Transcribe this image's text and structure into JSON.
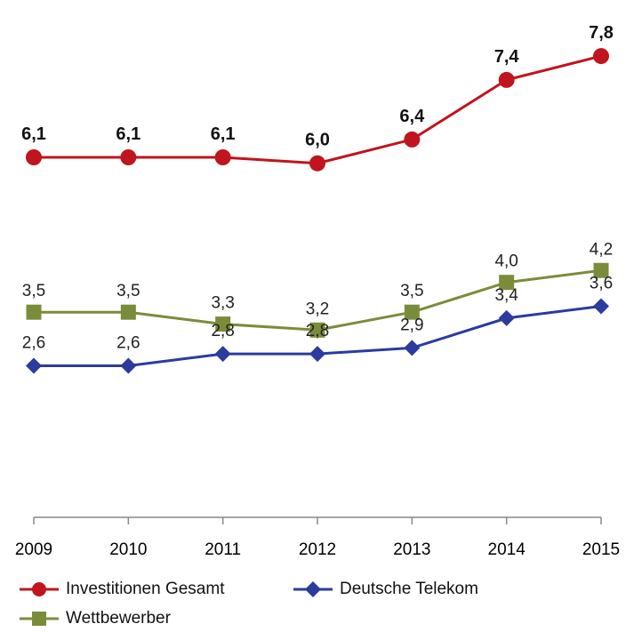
{
  "chart_data": {
    "type": "line",
    "x": [
      "2009",
      "2010",
      "2011",
      "2012",
      "2013",
      "2014",
      "2015"
    ],
    "ylim": [
      0,
      8.5
    ],
    "grid": false,
    "legend_position": "bottom",
    "series": [
      {
        "name": "Investitionen Gesamt",
        "color": "#C0141E",
        "marker": "circle",
        "values": [
          6.1,
          6.1,
          6.1,
          6.0,
          6.4,
          7.4,
          7.8
        ],
        "labels": [
          "6,1",
          "6,1",
          "6,1",
          "6,0",
          "6,4",
          "7,4",
          "7,8"
        ],
        "label_bold": true
      },
      {
        "name": "Deutsche Telekom",
        "color": "#2B3B9E",
        "marker": "diamond",
        "values": [
          2.6,
          2.6,
          2.8,
          2.8,
          2.9,
          3.4,
          3.6
        ],
        "labels": [
          "2,6",
          "2,6",
          "2,8",
          "2,8",
          "2,9",
          "3,4",
          "3,6"
        ],
        "label_bold": false
      },
      {
        "name": "Wettbewerber",
        "color": "#7A8C3A",
        "marker": "square",
        "values": [
          3.5,
          3.5,
          3.3,
          3.2,
          3.5,
          4.0,
          4.2
        ],
        "labels": [
          "3,5",
          "3,5",
          "3,3",
          "3,2",
          "3,5",
          "4,0",
          "4,2"
        ],
        "label_bold": false
      }
    ]
  }
}
